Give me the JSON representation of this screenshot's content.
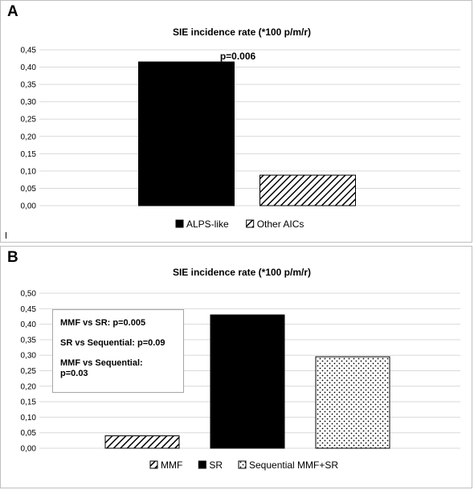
{
  "chart_data": [
    {
      "panel_label": "A",
      "type": "bar",
      "title": "SIE incidence rate (*100 p/m/r)",
      "categories": [
        "ALPS-like",
        "Other AICs"
      ],
      "values": [
        0.415,
        0.088
      ],
      "fills": [
        "solid",
        "diagonal"
      ],
      "ylim": [
        0,
        0.45
      ],
      "yticks": [
        "0,00",
        "0,05",
        "0,10",
        "0,15",
        "0,20",
        "0,25",
        "0,30",
        "0,35",
        "0,40",
        "0,45"
      ],
      "grid": true,
      "legend_position": "bottom",
      "annotation": "p=0.006"
    },
    {
      "panel_label": "B",
      "type": "bar",
      "title": "SIE incidence rate (*100 p/m/r)",
      "categories": [
        "MMF",
        "SR",
        "Sequential MMF+SR"
      ],
      "values": [
        0.04,
        0.43,
        0.295
      ],
      "fills": [
        "diagonal",
        "solid",
        "dotted"
      ],
      "ylim": [
        0,
        0.5
      ],
      "yticks": [
        "0,00",
        "0,05",
        "0,10",
        "0,15",
        "0,20",
        "0,25",
        "0,30",
        "0,35",
        "0,40",
        "0,45",
        "0,50"
      ],
      "grid": true,
      "legend_position": "bottom",
      "stats": [
        "MMF vs SR: p=0.005",
        "SR vs Sequential: p=0.09",
        "MMF vs Sequential: p=0.03"
      ]
    }
  ],
  "colors": {
    "bar": "#000000",
    "grid": "#d9d9d9",
    "border": "#bfbfbf"
  }
}
